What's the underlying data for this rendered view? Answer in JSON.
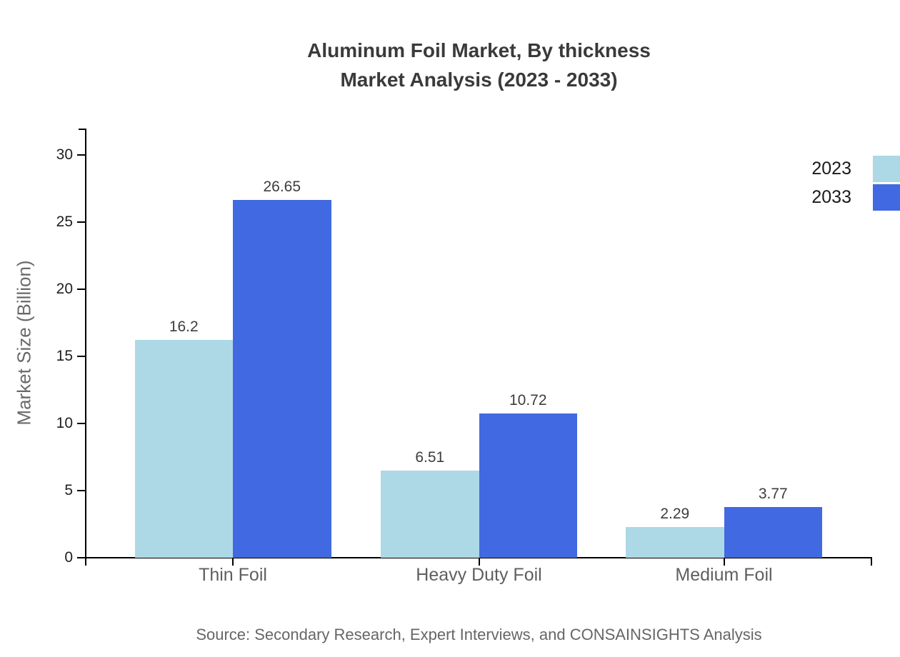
{
  "title_line1": "Aluminum Foil Market, By thickness",
  "title_line2": "Market Analysis (2023 - 2033)",
  "source": "Source: Secondary Research, Expert Interviews, and CONSAINSIGHTS Analysis",
  "chart_data": {
    "type": "bar",
    "title": "Aluminum Foil Market, By thickness Market Analysis (2023 - 2033)",
    "categories": [
      "Thin Foil",
      "Heavy Duty Foil",
      "Medium Foil"
    ],
    "series": [
      {
        "name": "2023",
        "color": "#ADD8E6",
        "values": [
          16.2,
          6.51,
          2.29
        ]
      },
      {
        "name": "2033",
        "color": "#4169E1",
        "values": [
          26.65,
          10.72,
          3.77
        ]
      }
    ],
    "xlabel": "",
    "ylabel": "Market Size (Billion)",
    "yticks": [
      0,
      5,
      10,
      15,
      20,
      25,
      30
    ],
    "ylim": [
      0,
      32
    ],
    "grid": false,
    "value_labels": true,
    "legend_position": "top-right outside, labels left of swatches"
  }
}
